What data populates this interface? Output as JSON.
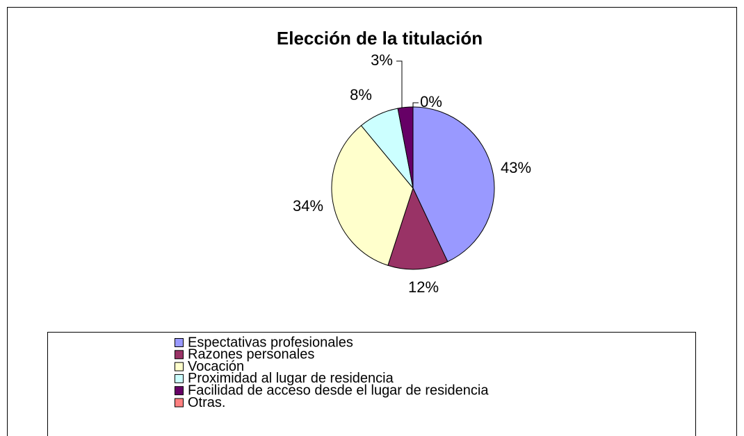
{
  "chart_data": {
    "type": "pie",
    "title": "Elección de la titulación",
    "categories": [
      "Espectativas profesionales",
      "Razones personales",
      "Vocación",
      "Proximidad al lugar de residencia",
      "Facilidad de acceso desde el lugar de residencia",
      "Otras."
    ],
    "values": [
      43,
      12,
      34,
      8,
      3,
      0
    ],
    "value_labels": [
      "43%",
      "12%",
      "34%",
      "8%",
      "3%",
      "0%"
    ],
    "colors": [
      "#9999ff",
      "#993366",
      "#ffffcc",
      "#ccffff",
      "#660066",
      "#ff8080"
    ],
    "legend": "bottom"
  }
}
